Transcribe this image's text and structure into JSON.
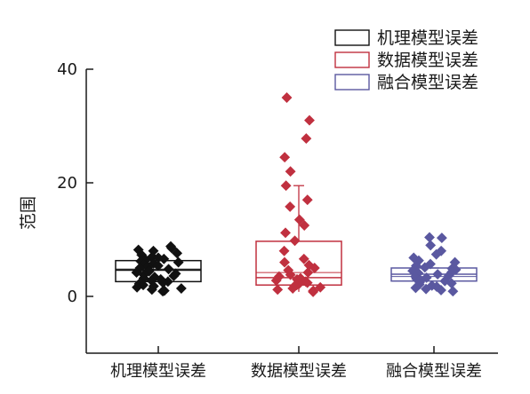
{
  "chart_data": {
    "type": "box",
    "ylabel": "范围",
    "ylim": [
      -10,
      40
    ],
    "yticks": [
      0,
      20,
      40
    ],
    "legend_position": "top-right",
    "grid": false,
    "categories": [
      "机理模型误差",
      "数据模型误差",
      "融合模型误差"
    ],
    "series": [
      {
        "name": "机理模型误差",
        "color": "#111111",
        "box": {
          "q1": 2.6,
          "median": 4.6,
          "q3": 6.3,
          "mean": 4.8,
          "whisker_low": 2.6,
          "whisker_high": 6.3
        },
        "points": [
          8.8,
          8.5,
          8.2,
          8.0,
          7.6,
          7.3,
          7.0,
          6.8,
          6.6,
          6.4,
          6.2,
          6.0,
          5.8,
          5.6,
          5.4,
          5.2,
          5.0,
          4.8,
          4.6,
          4.4,
          4.2,
          4.0,
          3.8,
          3.6,
          3.4,
          3.2,
          3.0,
          2.8,
          2.6,
          2.4,
          2.2,
          2.0,
          1.8,
          1.6,
          1.4,
          1.2,
          1.0,
          0.9
        ]
      },
      {
        "name": "数据模型误差",
        "color": "#c0303f",
        "box": {
          "q1": 2.0,
          "median": 3.3,
          "q3": 9.7,
          "mean": 4.2,
          "whisker_low": 0.8,
          "whisker_high": 19.5
        },
        "points": [
          35.0,
          31.0,
          27.8,
          24.5,
          22.0,
          19.5,
          17.0,
          15.8,
          13.5,
          12.5,
          11.2,
          9.8,
          8.0,
          6.6,
          6.0,
          5.5,
          5.0,
          4.6,
          4.2,
          3.8,
          3.5,
          3.2,
          3.0,
          2.8,
          2.6,
          2.4,
          2.2,
          2.0,
          1.8,
          1.6,
          1.4,
          1.2,
          1.0,
          0.8
        ]
      },
      {
        "name": "融合模型误差",
        "color": "#5a58a0",
        "box": {
          "q1": 2.7,
          "median": 3.9,
          "q3": 5.0,
          "mean": 3.5,
          "whisker_low": 2.7,
          "whisker_high": 5.0
        },
        "points": [
          10.4,
          10.3,
          9.0,
          8.0,
          7.4,
          6.8,
          6.3,
          6.0,
          5.7,
          5.4,
          5.1,
          4.9,
          4.7,
          4.5,
          4.3,
          4.1,
          3.9,
          3.7,
          3.5,
          3.3,
          3.1,
          2.9,
          2.7,
          2.5,
          2.3,
          2.1,
          1.9,
          1.7,
          1.5,
          1.3,
          1.1,
          0.9
        ]
      }
    ]
  }
}
